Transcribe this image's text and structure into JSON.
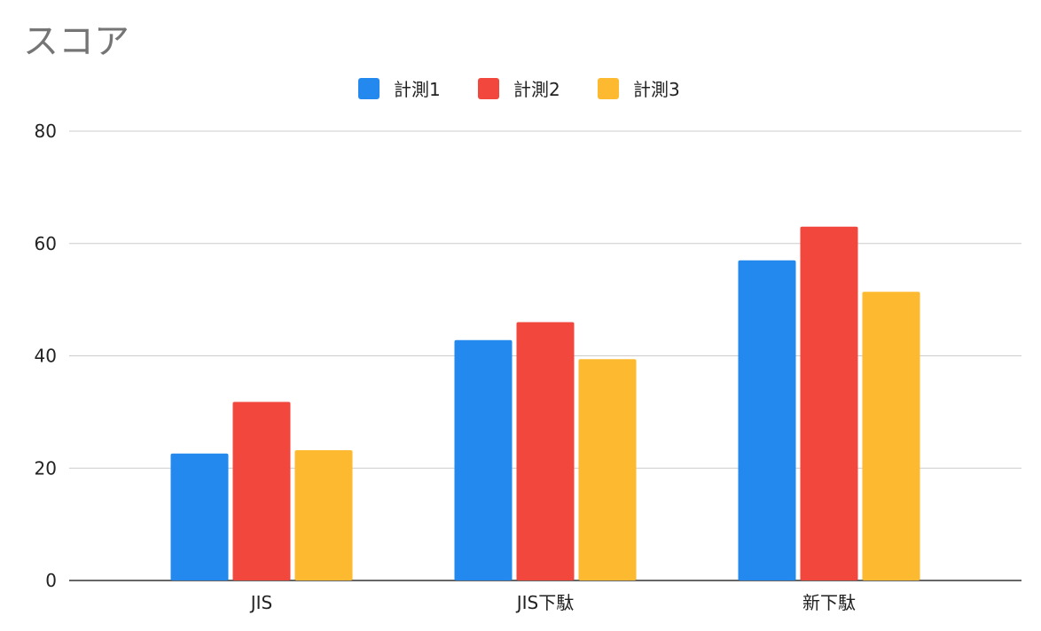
{
  "chart_data": {
    "type": "bar",
    "title": "スコア",
    "categories": [
      "JIS",
      "JIS下駄",
      "新下駄"
    ],
    "series": [
      {
        "name": "計測1",
        "color": "#2389EE",
        "values": [
          22.6,
          42.8,
          57
        ]
      },
      {
        "name": "計測2",
        "color": "#F1473C",
        "values": [
          31.8,
          46,
          63
        ]
      },
      {
        "name": "計測3",
        "color": "#FDBA31",
        "values": [
          23.2,
          39.4,
          51.4
        ]
      }
    ],
    "ylim": [
      0,
      80
    ],
    "yticks": [
      0,
      20,
      40,
      60,
      80
    ],
    "grid": true,
    "legend": "top-center"
  }
}
